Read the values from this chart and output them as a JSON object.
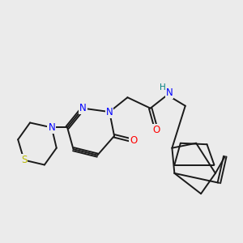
{
  "background_color": "#ebebeb",
  "bond_color": "#1a1a1a",
  "bond_width": 1.4,
  "atom_colors": {
    "N": "#0000ff",
    "O": "#ff0000",
    "S": "#b8b800",
    "H": "#008080",
    "C": "#1a1a1a"
  },
  "font_size_atom": 8.5
}
